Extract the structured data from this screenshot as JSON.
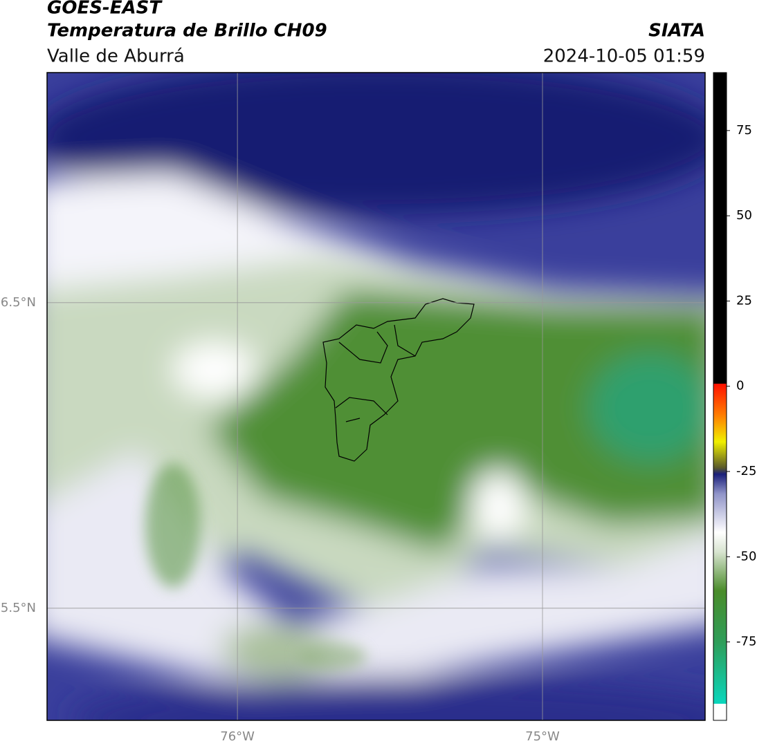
{
  "header": {
    "title": "GOES-EAST",
    "subtitle": "Temperatura de Brillo CH09",
    "region": "Valle de Aburrá",
    "source": "SIATA",
    "datetime": "2024-10-05 01:59"
  },
  "map": {
    "xlim": [
      -76.624,
      -74.467
    ],
    "ylim": [
      5.133,
      7.253
    ],
    "xticks": [
      {
        "value": -76,
        "label": "76°W"
      },
      {
        "value": -75,
        "label": "75°W"
      }
    ],
    "yticks": [
      {
        "value": 6.5,
        "label": "6.5°N"
      },
      {
        "value": 5.5,
        "label": "5.5°N"
      }
    ]
  },
  "colorbar": {
    "lim": [
      -98,
      92
    ],
    "ticks": [
      75,
      50,
      25,
      0,
      -25,
      -50,
      -75
    ]
  }
}
